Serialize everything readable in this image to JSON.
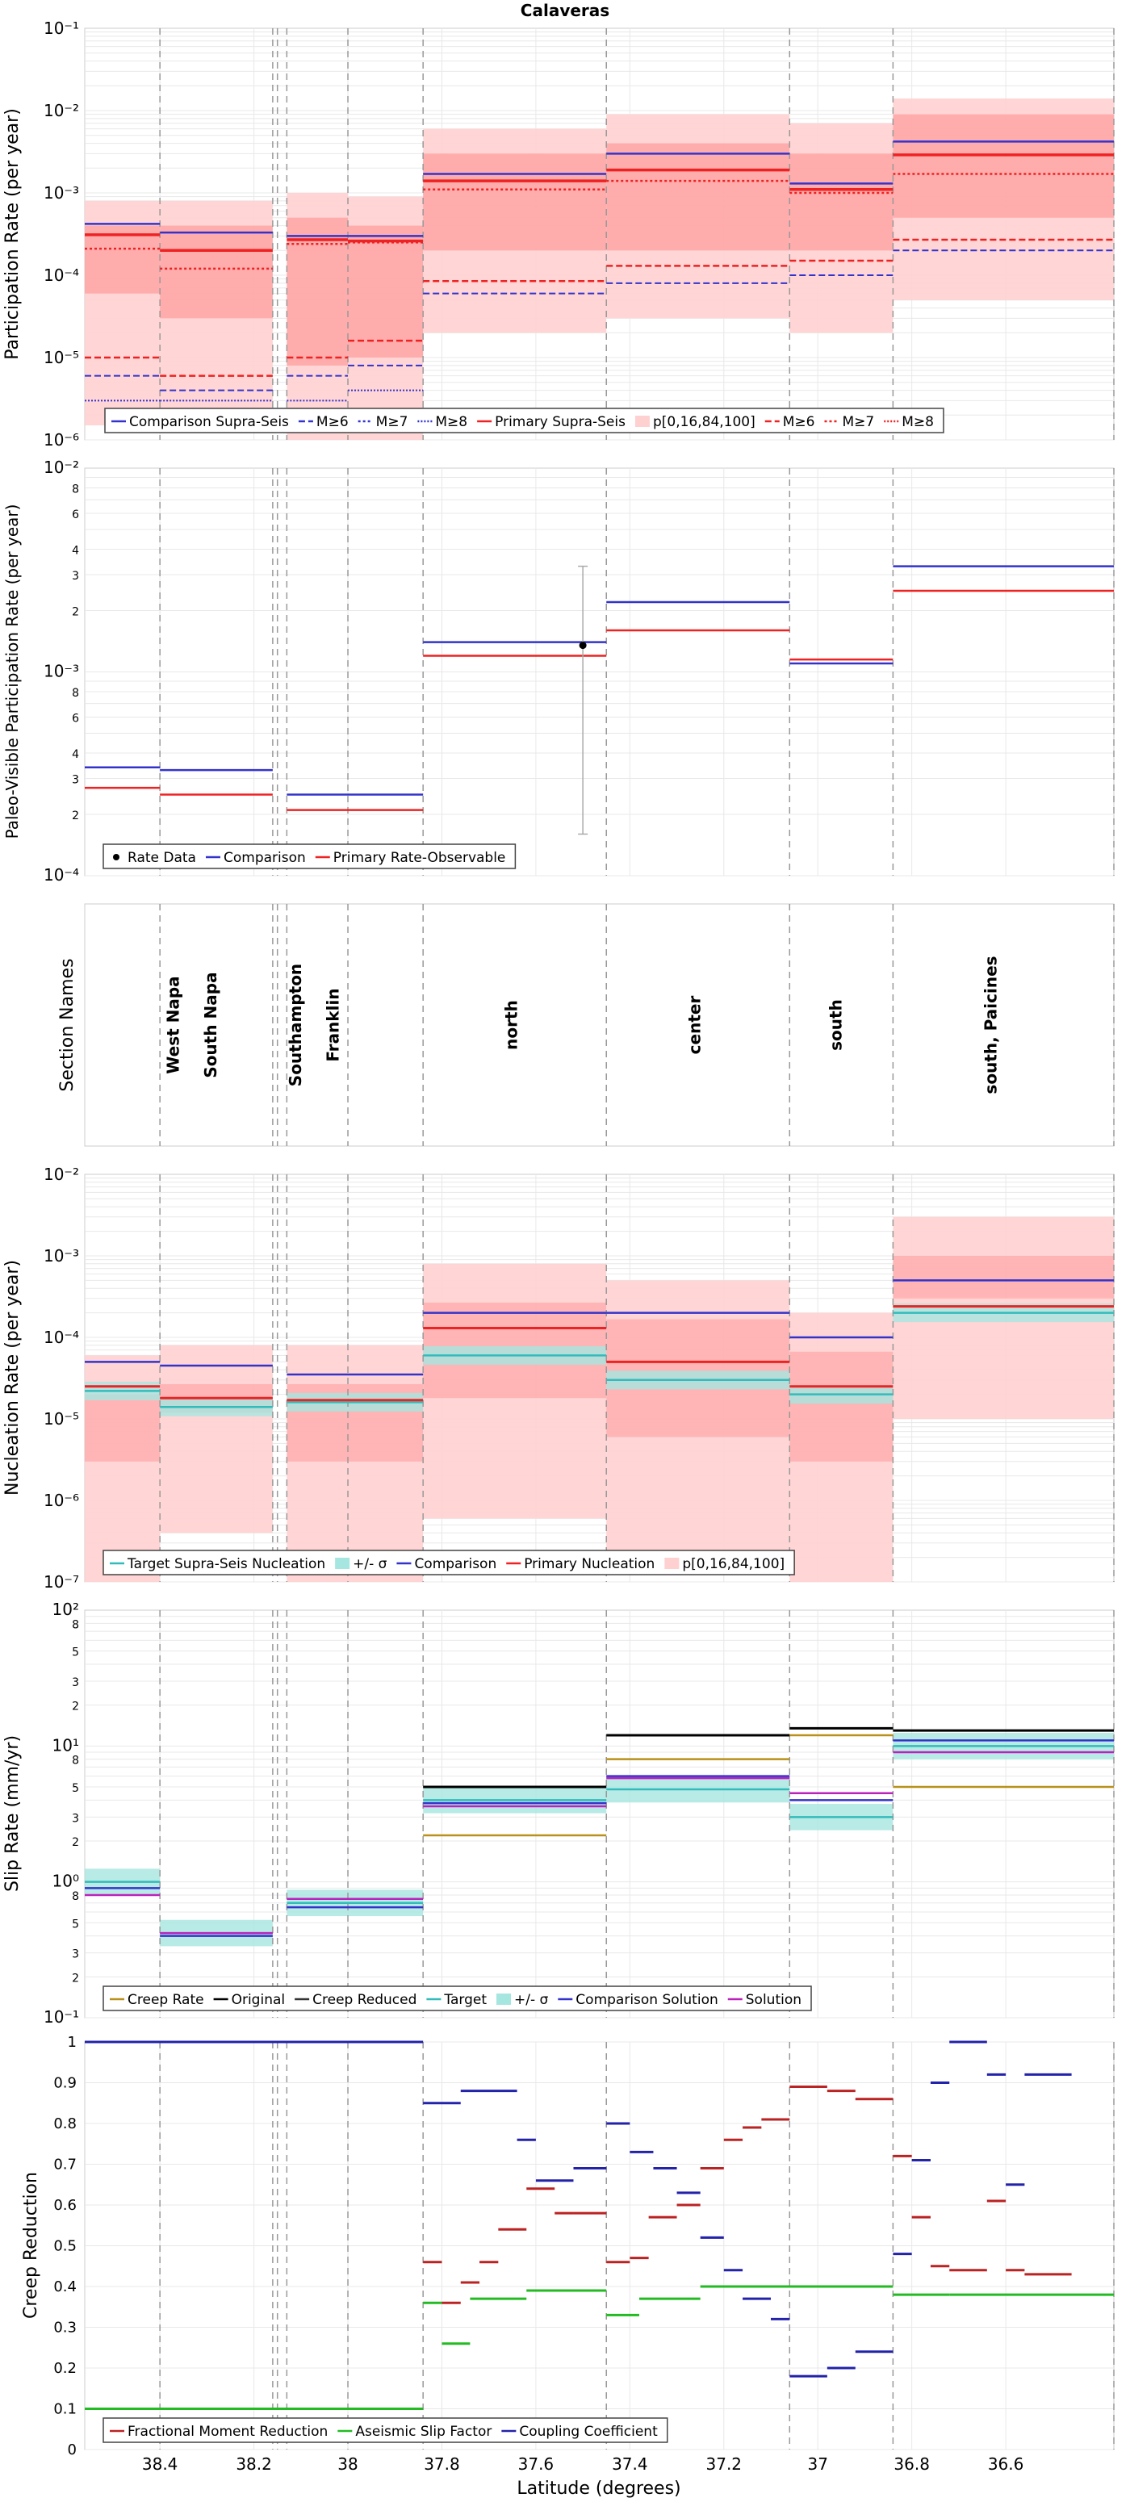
{
  "title": "Calaveras",
  "xlabel": "Latitude (degrees)",
  "colors": {
    "comparison": "#3333cc",
    "primary": "#ee2222",
    "target": "#33bbbb",
    "band_light": "#ffd0d0",
    "band_dark": "#ff9a9a",
    "sigma": "#a6e6e0",
    "creep": "#b8901a",
    "original": "#000000",
    "reduced": "#333333",
    "solution": "#bb22bb",
    "fmr": "#bb2222",
    "asf": "#22bb22",
    "cc": "#2222aa",
    "ratedata": "#000000",
    "grid": "#e8e8e8",
    "dash": "#999999"
  },
  "chart_data": {
    "type": "line",
    "x_range": [
      38.56,
      36.37
    ],
    "x_ticks": [
      "38.4",
      "38.2",
      "38",
      "37.8",
      "37.6",
      "37.4",
      "37.2",
      "37",
      "36.8",
      "36.6"
    ],
    "x_tick_values": [
      38.4,
      38.2,
      38.0,
      37.8,
      37.6,
      37.4,
      37.2,
      37.0,
      36.8,
      36.6
    ],
    "section_boundaries": [
      38.4,
      38.16,
      38.15,
      38.13,
      38.0,
      37.84,
      37.45,
      37.06,
      36.84,
      36.37
    ],
    "section_names": [
      {
        "name": "West Napa",
        "x": 38.36
      },
      {
        "name": "South Napa",
        "x": 38.28
      },
      {
        "name": "Southampton",
        "x": 38.1
      },
      {
        "name": "Franklin",
        "x": 38.02
      },
      {
        "name": "north",
        "x": 37.64
      },
      {
        "name": "center",
        "x": 37.25
      },
      {
        "name": "south",
        "x": 36.95
      },
      {
        "name": "south, Paicines",
        "x": 36.62
      }
    ],
    "panels": {
      "participation": {
        "ylabel": "Participation Rate (per year)",
        "ylim": [
          1e-06,
          0.1
        ],
        "y_tick_labels": [
          "10⁻⁶",
          "10⁻⁵",
          "10⁻⁴",
          "10⁻³",
          "10⁻²",
          "10⁻¹"
        ],
        "legend": [
          "Comparison Supra-Seis",
          "M≥6",
          "M≥7",
          "M≥8",
          "Primary Supra-Seis",
          "p[0,16,84,100]",
          "M≥6",
          "M≥7",
          "M≥8"
        ],
        "segments": [
          [
            38.56,
            38.4
          ],
          [
            38.4,
            38.16
          ],
          [
            38.13,
            38.0
          ],
          [
            38.0,
            37.84
          ],
          [
            37.84,
            37.45
          ],
          [
            37.45,
            37.06
          ],
          [
            37.06,
            36.84
          ],
          [
            36.84,
            36.37
          ]
        ],
        "comparison_supra": [
          0.00042,
          0.00033,
          0.0003,
          0.0003,
          0.0017,
          0.003,
          0.0013,
          0.0042
        ],
        "primary_supra": [
          0.00031,
          0.0002,
          0.00027,
          0.00026,
          0.0014,
          0.0019,
          0.0011,
          0.0029
        ],
        "primary_m7": [
          0.00021,
          0.00012,
          0.00024,
          0.00025,
          0.0011,
          0.0014,
          0.001,
          0.0017
        ],
        "primary_m6": [
          1e-05,
          6e-06,
          1e-05,
          1.6e-05,
          8.5e-05,
          0.00013,
          0.00015,
          0.00027
        ],
        "comparison_m6": [
          6e-06,
          4e-06,
          6e-06,
          8e-06,
          6e-05,
          8e-05,
          0.0001,
          0.0002
        ],
        "comparison_m8": [
          3e-06,
          3e-06,
          3e-06,
          4e-06,
          0,
          0,
          0,
          0
        ],
        "band_min": [
          1.5e-06,
          1.2e-06,
          1e-06,
          1e-06,
          2e-05,
          3e-05,
          2e-05,
          5e-05
        ],
        "band_p16": [
          6e-05,
          3e-05,
          8e-06,
          1e-05,
          0.0002,
          0.0002,
          0.0002,
          0.0005
        ],
        "band_p84": [
          0.0004,
          0.0004,
          0.0005,
          0.0004,
          0.003,
          0.004,
          0.003,
          0.009
        ],
        "band_max": [
          0.0008,
          0.0008,
          0.001,
          0.0009,
          0.006,
          0.009,
          0.007,
          0.014
        ]
      },
      "paleo": {
        "ylabel": "Paleo-Visible Participation Rate (per year)",
        "ylim": [
          0.0001,
          0.01
        ],
        "y_tick_labels": [
          "10⁻⁴",
          "2",
          "3",
          "4",
          "6",
          "8",
          "10⁻³",
          "2",
          "3",
          "4",
          "6",
          "8",
          "10⁻²"
        ],
        "legend": [
          "Rate Data",
          "Comparison",
          "Primary Rate-Observable"
        ],
        "rate_data": {
          "x": 37.5,
          "y": 0.00135,
          "err_low": 0.00016,
          "err_high": 0.0033
        },
        "comparison": [
          [
            38.56,
            38.4,
            0.00034
          ],
          [
            38.4,
            38.16,
            0.00033
          ],
          [
            38.13,
            37.84,
            0.00025
          ],
          [
            37.84,
            37.45,
            0.0014
          ],
          [
            37.45,
            37.06,
            0.0022
          ],
          [
            37.06,
            36.84,
            0.0011
          ],
          [
            36.84,
            36.37,
            0.0033
          ]
        ],
        "primary": [
          [
            38.56,
            38.4,
            0.00027
          ],
          [
            38.4,
            38.16,
            0.00025
          ],
          [
            38.13,
            37.84,
            0.00021
          ],
          [
            37.84,
            37.45,
            0.0012
          ],
          [
            37.45,
            37.06,
            0.0016
          ],
          [
            37.06,
            36.84,
            0.00115
          ],
          [
            36.84,
            36.37,
            0.0025
          ]
        ]
      },
      "sections": {
        "ylabel": "Section Names"
      },
      "nucleation": {
        "ylabel": "Nucleation Rate (per year)",
        "ylim": [
          1e-07,
          0.01
        ],
        "y_tick_labels": [
          "10⁻⁷",
          "10⁻⁶",
          "10⁻⁵",
          "10⁻⁴",
          "10⁻³",
          "10⁻²"
        ],
        "legend": [
          "Target Supra-Seis Nucleation",
          "+/- σ",
          "Comparison",
          "Primary Nucleation",
          "p[0,16,84,100]"
        ],
        "target": [
          [
            38.56,
            38.4,
            2.2e-05
          ],
          [
            38.4,
            38.16,
            1.4e-05
          ],
          [
            38.13,
            37.84,
            1.6e-05
          ],
          [
            37.84,
            37.45,
            6e-05
          ],
          [
            37.45,
            37.06,
            3e-05
          ],
          [
            37.06,
            36.84,
            2e-05
          ],
          [
            36.84,
            36.37,
            0.0002
          ]
        ],
        "comparison": [
          [
            38.56,
            38.4,
            5e-05
          ],
          [
            38.4,
            38.16,
            4.5e-05
          ],
          [
            38.13,
            37.84,
            3.5e-05
          ],
          [
            37.84,
            37.45,
            0.0002
          ],
          [
            37.45,
            37.06,
            0.0002
          ],
          [
            37.06,
            36.84,
            0.0001
          ],
          [
            36.84,
            36.37,
            0.0005
          ]
        ],
        "primary": [
          [
            38.56,
            38.4,
            2.5e-05
          ],
          [
            38.4,
            38.16,
            1.8e-05
          ],
          [
            38.13,
            37.84,
            1.7e-05
          ],
          [
            37.84,
            37.45,
            0.00013
          ],
          [
            37.45,
            37.06,
            5e-05
          ],
          [
            37.06,
            36.84,
            2.5e-05
          ],
          [
            36.84,
            36.37,
            0.00024
          ]
        ],
        "band": [
          [
            38.56,
            38.4,
            1e-07,
            6e-05
          ],
          [
            38.4,
            38.16,
            4e-07,
            8e-05
          ],
          [
            38.13,
            37.84,
            1e-07,
            8e-05
          ],
          [
            37.84,
            37.45,
            6e-07,
            0.0008
          ],
          [
            37.45,
            37.06,
            2e-07,
            0.0005
          ],
          [
            37.06,
            36.84,
            1e-07,
            0.0002
          ],
          [
            36.84,
            36.37,
            1e-05,
            0.003
          ]
        ]
      },
      "slip": {
        "ylabel": "Slip Rate (mm/yr)",
        "ylim": [
          0.1,
          100
        ],
        "y_tick_labels": [
          "10⁻¹",
          "2",
          "3",
          "5",
          "8",
          "10⁰",
          "2",
          "3",
          "5",
          "8",
          "10¹",
          "2",
          "3",
          "5",
          "8",
          "10²"
        ],
        "legend": [
          "Creep Rate",
          "Original",
          "Creep Reduced",
          "Target",
          "+/- σ",
          "Comparison Solution",
          "Solution"
        ],
        "original": [
          [
            37.84,
            37.45,
            5.0
          ],
          [
            37.45,
            37.06,
            12.0
          ],
          [
            37.06,
            36.84,
            13.5
          ],
          [
            36.84,
            36.37,
            13.0
          ]
        ],
        "creep": [
          [
            37.84,
            37.45,
            2.2
          ],
          [
            37.45,
            37.06,
            8.0
          ],
          [
            37.06,
            36.84,
            12.0
          ],
          [
            36.84,
            36.37,
            5.0
          ]
        ],
        "target": [
          [
            38.56,
            38.4,
            1.0
          ],
          [
            38.4,
            38.16,
            0.42
          ],
          [
            38.13,
            37.84,
            0.7
          ],
          [
            37.84,
            37.45,
            4.0
          ],
          [
            37.45,
            37.06,
            4.8
          ],
          [
            37.06,
            36.84,
            3.0
          ],
          [
            36.84,
            36.37,
            10.0
          ]
        ],
        "comparison": [
          [
            38.56,
            38.4,
            0.9
          ],
          [
            38.4,
            38.16,
            0.4
          ],
          [
            38.13,
            37.84,
            0.65
          ],
          [
            37.84,
            37.45,
            3.8
          ],
          [
            37.45,
            37.06,
            6.0
          ],
          [
            37.06,
            36.84,
            4.0
          ],
          [
            36.84,
            36.37,
            11.0
          ]
        ],
        "solution": [
          [
            38.56,
            38.4,
            0.8
          ],
          [
            38.4,
            38.16,
            0.42
          ],
          [
            38.13,
            37.84,
            0.75
          ],
          [
            37.84,
            37.45,
            3.6
          ],
          [
            37.45,
            37.06,
            5.8
          ],
          [
            37.06,
            36.84,
            4.5
          ],
          [
            36.84,
            36.37,
            9.0
          ]
        ]
      },
      "creep": {
        "ylabel": "Creep Reduction",
        "ylim": [
          0,
          1
        ],
        "y_tick_labels": [
          "0",
          "0.1",
          "0.2",
          "0.3",
          "0.4",
          "0.5",
          "0.6",
          "0.7",
          "0.8",
          "0.9",
          "1"
        ],
        "legend": [
          "Fractional Moment Reduction",
          "Aseismic Slip Factor",
          "Coupling Coefficient"
        ],
        "asf": [
          [
            38.56,
            37.84,
            0.1
          ],
          [
            37.84,
            37.8,
            0.36
          ],
          [
            37.8,
            37.74,
            0.26
          ],
          [
            37.74,
            37.62,
            0.37
          ],
          [
            37.62,
            37.45,
            0.39
          ],
          [
            37.45,
            37.38,
            0.33
          ],
          [
            37.38,
            37.25,
            0.37
          ],
          [
            37.25,
            36.84,
            0.4
          ],
          [
            36.84,
            36.72,
            0.38
          ],
          [
            36.72,
            36.37,
            0.38
          ]
        ],
        "cc": [
          [
            38.56,
            37.84,
            1.0
          ],
          [
            37.84,
            37.76,
            0.85
          ],
          [
            37.76,
            37.64,
            0.88
          ],
          [
            37.64,
            37.6,
            0.76
          ],
          [
            37.6,
            37.52,
            0.66
          ],
          [
            37.52,
            37.45,
            0.69
          ],
          [
            37.45,
            37.4,
            0.8
          ],
          [
            37.4,
            37.35,
            0.73
          ],
          [
            37.35,
            37.3,
            0.69
          ],
          [
            37.3,
            37.25,
            0.63
          ],
          [
            37.25,
            37.2,
            0.52
          ],
          [
            37.2,
            37.16,
            0.44
          ],
          [
            37.16,
            37.1,
            0.37
          ],
          [
            37.1,
            37.06,
            0.32
          ],
          [
            37.06,
            36.98,
            0.18
          ],
          [
            36.98,
            36.92,
            0.2
          ],
          [
            36.92,
            36.84,
            0.24
          ],
          [
            36.84,
            36.8,
            0.48
          ],
          [
            36.8,
            36.76,
            0.71
          ],
          [
            36.76,
            36.72,
            0.9
          ],
          [
            36.72,
            36.64,
            1.0
          ],
          [
            36.64,
            36.6,
            0.92
          ],
          [
            36.6,
            36.56,
            0.65
          ],
          [
            36.56,
            36.46,
            0.92
          ]
        ],
        "fmr": [
          [
            37.84,
            37.8,
            0.46
          ],
          [
            37.8,
            37.76,
            0.36
          ],
          [
            37.76,
            37.72,
            0.41
          ],
          [
            37.72,
            37.68,
            0.46
          ],
          [
            37.68,
            37.62,
            0.54
          ],
          [
            37.62,
            37.56,
            0.64
          ],
          [
            37.56,
            37.52,
            0.58
          ],
          [
            37.52,
            37.45,
            0.58
          ],
          [
            37.45,
            37.4,
            0.46
          ],
          [
            37.4,
            37.36,
            0.47
          ],
          [
            37.36,
            37.3,
            0.57
          ],
          [
            37.3,
            37.25,
            0.6
          ],
          [
            37.25,
            37.2,
            0.69
          ],
          [
            37.2,
            37.16,
            0.76
          ],
          [
            37.16,
            37.12,
            0.79
          ],
          [
            37.12,
            37.06,
            0.81
          ],
          [
            37.06,
            36.98,
            0.89
          ],
          [
            36.98,
            36.92,
            0.88
          ],
          [
            36.92,
            36.84,
            0.86
          ],
          [
            36.84,
            36.8,
            0.72
          ],
          [
            36.8,
            36.76,
            0.57
          ],
          [
            36.76,
            36.72,
            0.45
          ],
          [
            36.72,
            36.64,
            0.44
          ],
          [
            36.64,
            36.6,
            0.61
          ],
          [
            36.6,
            36.56,
            0.44
          ],
          [
            36.56,
            36.46,
            0.43
          ]
        ]
      }
    }
  }
}
